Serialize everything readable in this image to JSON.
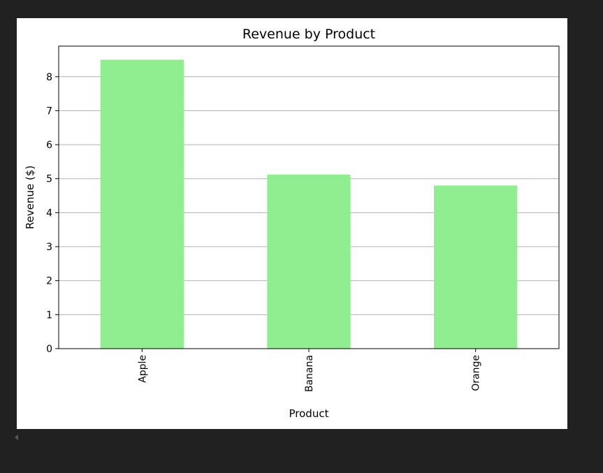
{
  "chart_data": {
    "type": "bar",
    "title": "Revenue by Product",
    "xlabel": "Product",
    "ylabel": "Revenue ($)",
    "categories": [
      "Apple",
      "Banana",
      "Orange"
    ],
    "values": [
      8.5,
      5.12,
      4.8
    ],
    "ylim": [
      0,
      8.9
    ],
    "yticks": [
      "0",
      "1",
      "2",
      "3",
      "4",
      "5",
      "6",
      "7",
      "8"
    ],
    "grid": "horizontal",
    "x_tick_rotation": "vertical",
    "bar_color": "#90ee90",
    "grid_color": "#b0b0b0",
    "legend": "none"
  },
  "viewer": {
    "background": "#212121",
    "scroll_icon": "left-arrow-icon"
  }
}
